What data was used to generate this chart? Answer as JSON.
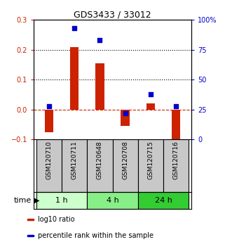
{
  "title": "GDS3433 / 33012",
  "samples": [
    "GSM120710",
    "GSM120711",
    "GSM120648",
    "GSM120708",
    "GSM120715",
    "GSM120716"
  ],
  "log10_ratio": [
    -0.075,
    0.21,
    0.155,
    -0.055,
    0.02,
    -0.105
  ],
  "percentile_rank": [
    28,
    93,
    83,
    22,
    38,
    28
  ],
  "left_ylim": [
    -0.1,
    0.3
  ],
  "right_ylim": [
    0,
    100
  ],
  "left_yticks": [
    -0.1,
    0.0,
    0.1,
    0.2,
    0.3
  ],
  "right_yticks": [
    0,
    25,
    50,
    75,
    100
  ],
  "dotted_lines": [
    0.1,
    0.2
  ],
  "bar_color": "#CC2200",
  "scatter_color": "#0000CC",
  "zero_line_color": "#CC2200",
  "time_groups": [
    {
      "label": "1 h",
      "indices": [
        0,
        1
      ],
      "color": "#CCFFCC"
    },
    {
      "label": "4 h",
      "indices": [
        2,
        3
      ],
      "color": "#88EE88"
    },
    {
      "label": "24 h",
      "indices": [
        4,
        5
      ],
      "color": "#33CC33"
    }
  ],
  "legend_red": "log10 ratio",
  "legend_blue": "percentile rank within the sample",
  "bar_width": 0.35,
  "scatter_size": 25,
  "time_label": "time"
}
